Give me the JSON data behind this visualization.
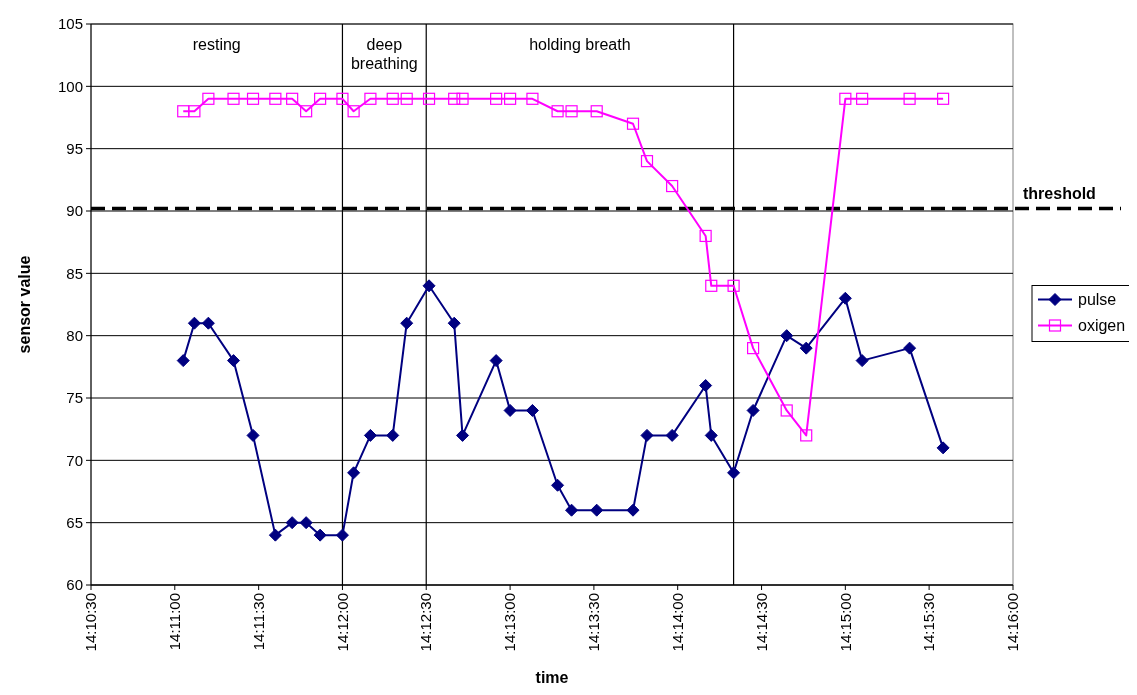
{
  "chart_data": {
    "type": "line",
    "xlabel": "time",
    "ylabel": "sensor value",
    "x": [
      14.18417,
      14.18528,
      14.18667,
      14.18917,
      14.19111,
      14.19333,
      14.195,
      14.19639,
      14.19778,
      14.2,
      14.20111,
      14.20278,
      14.205,
      14.20639,
      14.20861,
      14.21111,
      14.21194,
      14.21528,
      14.21667,
      14.21889,
      14.22139,
      14.22278,
      14.22528,
      14.22889,
      14.23028,
      14.23278,
      14.23611,
      14.23667,
      14.23889,
      14.24083,
      14.24417,
      14.24611,
      14.25,
      14.25167,
      14.25639,
      14.25972
    ],
    "series": [
      {
        "name": "pulse",
        "color": "#000080",
        "marker": "diamond",
        "values": [
          78,
          81,
          81,
          78,
          72,
          64,
          65,
          65,
          64,
          64,
          69,
          72,
          72,
          81,
          84,
          81,
          72,
          78,
          74,
          74,
          68,
          66,
          66,
          66,
          72,
          72,
          76,
          72,
          69,
          74,
          80,
          79,
          83,
          78,
          79,
          71
        ]
      },
      {
        "name": "oxigen",
        "color": "#ff00ff",
        "marker": "square",
        "values": [
          98,
          98,
          99,
          99,
          99,
          99,
          99,
          98,
          99,
          99,
          98,
          99,
          99,
          99,
          99,
          99,
          99,
          99,
          99,
          99,
          98,
          98,
          98,
          97,
          94,
          92,
          88,
          84,
          84,
          79,
          74,
          72,
          99,
          99,
          99,
          99
        ]
      }
    ],
    "xlim": [
      14.175,
      14.26667
    ],
    "xticks": [
      {
        "value": 14.175,
        "label": "14:10:30"
      },
      {
        "value": 14.18333,
        "label": "14:11:00"
      },
      {
        "value": 14.19167,
        "label": "14:11:30"
      },
      {
        "value": 14.2,
        "label": "14:12:00"
      },
      {
        "value": 14.20833,
        "label": "14:12:30"
      },
      {
        "value": 14.21667,
        "label": "14:13:00"
      },
      {
        "value": 14.225,
        "label": "14:13:30"
      },
      {
        "value": 14.23333,
        "label": "14:14:00"
      },
      {
        "value": 14.24167,
        "label": "14:14:30"
      },
      {
        "value": 14.25,
        "label": "14:15:00"
      },
      {
        "value": 14.25833,
        "label": "14:15:30"
      },
      {
        "value": 14.26667,
        "label": "14:16:00"
      }
    ],
    "ylim": [
      60,
      105
    ],
    "yticks": [
      60,
      65,
      70,
      75,
      80,
      85,
      90,
      95,
      100,
      105
    ],
    "grid": "y",
    "legend": "right",
    "ref_lines": [
      {
        "axis": "y",
        "value": 90.2,
        "label": "threshold",
        "color": "#000000",
        "line_style": "dashed"
      },
      {
        "axis": "x",
        "value": 14.2,
        "color": "#000000"
      },
      {
        "axis": "x",
        "value": 14.20833,
        "color": "#000000"
      },
      {
        "axis": "x",
        "value": 14.23889,
        "color": "#000000"
      }
    ],
    "annotations": [
      "resting",
      "deep\nbreathing",
      "holding breath"
    ]
  }
}
